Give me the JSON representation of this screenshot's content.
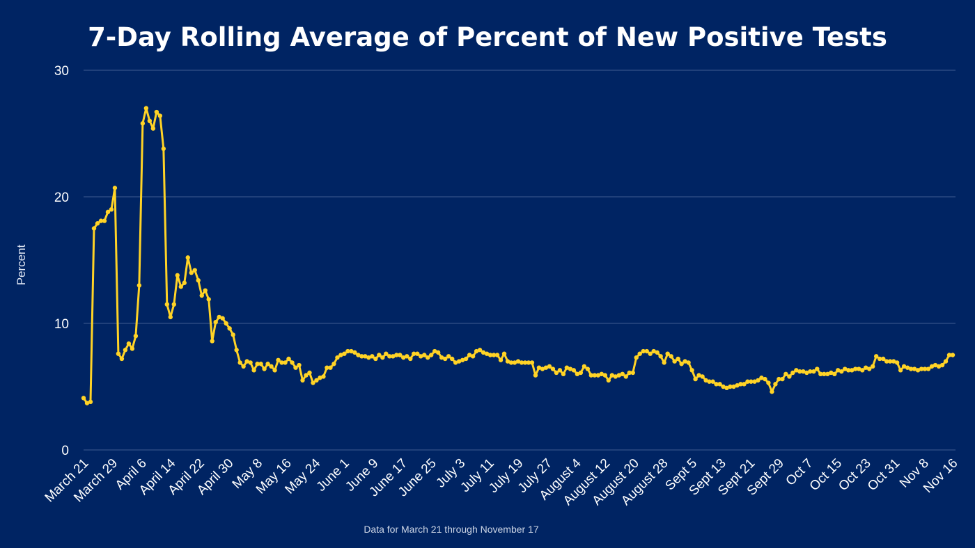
{
  "chart_data": {
    "type": "line",
    "title": "7-Day Rolling Average of Percent of New Positive Tests",
    "ylabel": "Percent",
    "footnote": "Data for March 21 through November 17",
    "ylim": [
      0,
      30
    ],
    "yticks": [
      0,
      10,
      20,
      30
    ],
    "xticks": [
      "March 21",
      "March 29",
      "April 6",
      "April 14",
      "April 22",
      "April 30",
      "May 8",
      "May 16",
      "May 24",
      "June 1",
      "June 9",
      "June 17",
      "June 25",
      "July 3",
      "July 11",
      "July 19",
      "July 27",
      "August 4",
      "August 12",
      "August 20",
      "August 28",
      "Sept 5",
      "Sept 13",
      "Sept 21",
      "Sept 29",
      "Oct 7",
      "Oct 15",
      "Oct 23",
      "Oct 31",
      "Nov 8",
      "Nov 16"
    ],
    "x_start": "March 21",
    "x_end": "November 17",
    "grid": true,
    "legend": "none",
    "line_color": "#FFD326",
    "background": "#002463",
    "series": [
      {
        "values": [
          4.1,
          3.7,
          3.8,
          17.5,
          17.9,
          18.1,
          18.1,
          18.8,
          19.0,
          20.7,
          7.6,
          7.2,
          7.9,
          8.4,
          8.0,
          9.0,
          13.0,
          25.8,
          27.0,
          26.0,
          25.4,
          26.7,
          26.4,
          23.8,
          11.5,
          10.5,
          11.5,
          13.8,
          12.9,
          13.2,
          15.2,
          14.0,
          14.2,
          13.4,
          12.2,
          12.6,
          11.9,
          8.6,
          10.1,
          10.5,
          10.4,
          10.0,
          9.6,
          9.1,
          7.9,
          6.9,
          6.6,
          7.0,
          6.9,
          6.3,
          6.8,
          6.8,
          6.4,
          6.8,
          6.6,
          6.3,
          7.1,
          6.9,
          6.9,
          7.2,
          6.9,
          6.5,
          6.7,
          5.5,
          5.9,
          6.1,
          5.3,
          5.5,
          5.7,
          5.8,
          6.5,
          6.5,
          6.8,
          7.3,
          7.5,
          7.6,
          7.8,
          7.8,
          7.7,
          7.5,
          7.4,
          7.4,
          7.3,
          7.4,
          7.2,
          7.5,
          7.3,
          7.6,
          7.4,
          7.4,
          7.5,
          7.5,
          7.3,
          7.4,
          7.2,
          7.6,
          7.6,
          7.4,
          7.5,
          7.3,
          7.5,
          7.8,
          7.7,
          7.3,
          7.2,
          7.4,
          7.2,
          6.9,
          7.0,
          7.1,
          7.2,
          7.5,
          7.4,
          7.8,
          7.9,
          7.7,
          7.6,
          7.5,
          7.5,
          7.5,
          7.1,
          7.6,
          7.0,
          6.9,
          6.9,
          7.0,
          6.9,
          6.9,
          6.9,
          6.9,
          5.9,
          6.5,
          6.4,
          6.5,
          6.6,
          6.4,
          6.1,
          6.3,
          6.0,
          6.5,
          6.4,
          6.3,
          6.0,
          6.1,
          6.6,
          6.4,
          5.9,
          5.9,
          5.9,
          6.0,
          5.9,
          5.5,
          5.9,
          5.8,
          5.9,
          6.0,
          5.8,
          6.1,
          6.1,
          7.3,
          7.6,
          7.8,
          7.8,
          7.6,
          7.8,
          7.7,
          7.4,
          6.9,
          7.6,
          7.4,
          7.0,
          7.2,
          6.8,
          7.0,
          6.9,
          6.3,
          5.6,
          5.9,
          5.8,
          5.5,
          5.4,
          5.4,
          5.2,
          5.2,
          5.0,
          4.9,
          5.0,
          5.0,
          5.1,
          5.2,
          5.2,
          5.4,
          5.4,
          5.4,
          5.5,
          5.7,
          5.6,
          5.3,
          4.6,
          5.2,
          5.6,
          5.6,
          6.0,
          5.8,
          6.1,
          6.3,
          6.2,
          6.2,
          6.1,
          6.2,
          6.2,
          6.4,
          6.0,
          6.0,
          6.0,
          6.1,
          6.0,
          6.3,
          6.2,
          6.4,
          6.3,
          6.3,
          6.4,
          6.4,
          6.3,
          6.5,
          6.4,
          6.6,
          7.4,
          7.2,
          7.2,
          7.0,
          7.0,
          7.0,
          6.9,
          6.3,
          6.6,
          6.5,
          6.4,
          6.4,
          6.3,
          6.4,
          6.4,
          6.4,
          6.6,
          6.7,
          6.6,
          6.7,
          7.0,
          7.5,
          7.5
        ]
      }
    ]
  }
}
